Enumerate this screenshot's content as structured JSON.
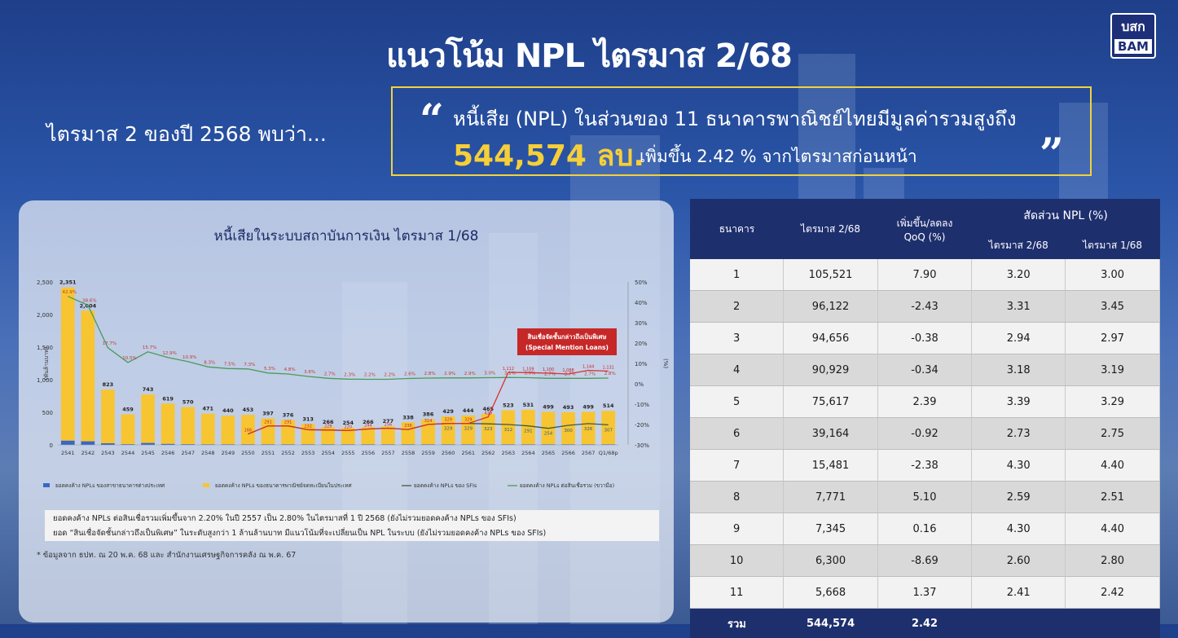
{
  "header": {
    "title": "แนวโน้ม NPL ไตรมาส 2/68"
  },
  "logo": {
    "line1": "บสก",
    "line2": "BAM"
  },
  "intro": "ไตรมาส 2 ของปี 2568 พบว่า...",
  "quote": {
    "open": "“",
    "close": "”",
    "line1": "หนี้เสีย (NPL) ในส่วนของ 11 ธนาคารพาณิชย์ไทยมีมูลค่ารวมสูงถึง",
    "highlight": "544,574 ลบ.",
    "line2": "เพิ่มขึ้น 2.42 % จากไตรมาสก่อนหน้า",
    "accent_color": "#f6cf38"
  },
  "chart_panel": {
    "title": "หนี้เสียในระบบสถาบันการเงิน ไตรมาส 1/68",
    "notes": [
      "ยอดคงค้าง NPLs ต่อสินเชื่อรวมเพิ่มขึ้นจาก 2.20% ในปี 2557 เป็น 2.80% ในไตรมาสที่ 1 ปี 2568 (ยังไม่รวมยอดคงค้าง NPLs ของ SFIs)",
      "ยอด “สินเชื่อจัดชั้นกล่าวถึงเป็นพิเศษ” ในระดับสูงกว่า 1 ล้านล้านบาท มีแนวโน้มที่จะเปลี่ยนเป็น NPL ในระบบ (ยังไม่รวมยอดคงค้าง NPLs ของ SFIs)"
    ],
    "footnote": "* ข้อมูลจาก ธปท. ณ 20 พ.ค. 68 และ  สำนักงานเศรษฐกิจการคลัง ณ พ.ค. 67"
  },
  "chart_data": {
    "type": "bar",
    "title": "หนี้เสียในระบบสถาบันการเงิน ไตรมาส 1/68",
    "ylabel": "(พันล้านบาท)",
    "y2label": "(%)",
    "ylim": [
      0,
      2500
    ],
    "y2lim": [
      -30,
      50
    ],
    "yticks": [
      "0",
      "500",
      "1,000",
      "1,500",
      "2,000",
      "2,500"
    ],
    "y2ticks": [
      "-30%",
      "-20%",
      "-10%",
      "0%",
      "10%",
      "20%",
      "30%",
      "40%",
      "50%"
    ],
    "categories": [
      "2541",
      "2542",
      "2543",
      "2544",
      "2545",
      "2546",
      "2547",
      "2548",
      "2549",
      "2550",
      "2551",
      "2552",
      "2553",
      "2554",
      "2555",
      "2556",
      "2557",
      "2558",
      "2559",
      "2560",
      "2561",
      "2562",
      "2563",
      "2564",
      "2565",
      "2566",
      "2567",
      "Q1/68p"
    ],
    "series": [
      {
        "name": "ยอดคงค้าง NPLs ของสาขาธนาคารต่างประเทศ",
        "color": "#3a66c4",
        "values": [
          65,
          55,
          25,
          10,
          30,
          15,
          10,
          8,
          8,
          8,
          8,
          8,
          8,
          8,
          8,
          8,
          8,
          8,
          8,
          8,
          8,
          8,
          8,
          8,
          8,
          8,
          8,
          8
        ]
      },
      {
        "name": "ยอดคงค้าง NPLs ของธนาคารพาณิชย์จดทะเบียนในประเทศ",
        "color": "#f7c531",
        "values": [
          2351,
          2004,
          823,
          459,
          743,
          619,
          570,
          471,
          440,
          453,
          397,
          376,
          313,
          266,
          254,
          266,
          277,
          338,
          386,
          429,
          444,
          465,
          523,
          531,
          499,
          493,
          499,
          514
        ]
      },
      {
        "name": "ยอดคงค้าง NPLs ของ SFIs",
        "color": "#3d5a40",
        "values": [
          null,
          null,
          null,
          null,
          null,
          null,
          null,
          null,
          null,
          166,
          291,
          291,
          232,
          229,
          220,
          244,
          256,
          236,
          314,
          329,
          329,
          323,
          312,
          291,
          254,
          300,
          326,
          307
        ]
      },
      {
        "name": "ยอดคงค้าง NPLs ต่อสินเชื่อรวม (ขวามือ)",
        "color": "#4a9a5a",
        "axis": "right",
        "values": [
          42.9,
          38.6,
          17.7,
          10.5,
          15.7,
          12.9,
          10.9,
          8.3,
          7.5,
          7.3,
          5.3,
          4.8,
          3.6,
          2.7,
          2.3,
          2.2,
          2.2,
          2.6,
          2.8,
          2.9,
          2.9,
          3.0,
          3.1,
          3.0,
          2.7,
          2.7,
          2.7,
          2.8
        ],
        "labels": [
          "42.9%",
          "38.6%",
          "17.7%",
          "10.5%",
          "15.7%",
          "12.9%",
          "10.9%",
          "8.3%",
          "7.5%",
          "7.3%",
          "5.3%",
          "4.8%",
          "3.6%",
          "2.7%",
          "2.3%",
          "2.2%",
          "2.2%",
          "2.6%",
          "2.8%",
          "2.9%",
          "2.9%",
          "3.0%",
          "3.1%",
          "3.0%",
          "2.7%",
          "2.7%",
          "2.7%",
          "2.8%"
        ]
      },
      {
        "name": "สินเชื่อจัดชั้นกล่าวถึงเป็นพิเศษ (Special Mention Loans)",
        "color": "#d9302c",
        "values": [
          null,
          null,
          null,
          null,
          null,
          null,
          null,
          null,
          null,
          166,
          291,
          291,
          232,
          229,
          220,
          244,
          256,
          236,
          314,
          329,
          329,
          430,
          1112,
          1109,
          1100,
          1088,
          1144,
          1131
        ]
      }
    ],
    "callout": {
      "line1": "สินเชื่อจัดชั้นกล่าวถึงเป็นพิเศษ",
      "line2": "(Special Mention Loans)"
    },
    "legend_position": "bottom",
    "grid": false
  },
  "table": {
    "headers": {
      "bank": "ธนาคาร",
      "current": "ไตรมาส 2/68",
      "change": "เพิ่มขึ้น/ลดลง",
      "change_unit": "QoQ (%)",
      "ratio": "สัดส่วน NPL  (%)",
      "ratio_current": "ไตรมาส 2/68",
      "ratio_prev": "ไตรมาส 1/68"
    },
    "rows": [
      [
        "1",
        "105,521",
        "7.90",
        "3.20",
        "3.00"
      ],
      [
        "2",
        "96,122",
        "-2.43",
        "3.31",
        "3.45"
      ],
      [
        "3",
        "94,656",
        "-0.38",
        "2.94",
        "2.97"
      ],
      [
        "4",
        "90,929",
        "-0.34",
        "3.18",
        "3.19"
      ],
      [
        "5",
        "75,617",
        "2.39",
        "3.39",
        "3.29"
      ],
      [
        "6",
        "39,164",
        "-0.92",
        "2.73",
        "2.75"
      ],
      [
        "7",
        "15,481",
        "-2.38",
        "4.30",
        "4.40"
      ],
      [
        "8",
        "7,771",
        "5.10",
        "2.59",
        "2.51"
      ],
      [
        "9",
        "7,345",
        "0.16",
        "4.30",
        "4.40"
      ],
      [
        "10",
        "6,300",
        "-8.69",
        "2.60",
        "2.80"
      ],
      [
        "11",
        "5,668",
        "1.37",
        "2.41",
        "2.42"
      ]
    ],
    "total": [
      "รวม",
      "544,574",
      "2.42",
      "",
      ""
    ]
  }
}
